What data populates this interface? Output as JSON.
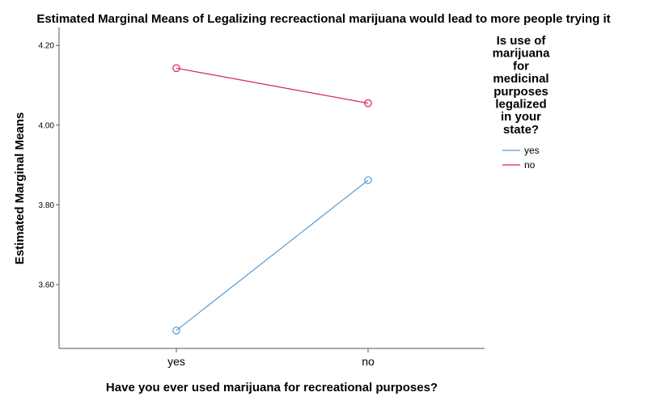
{
  "chart_data": {
    "type": "line",
    "title": "Estimated Marginal Means of Legalizing recreactional marijuana would lead to more people trying it",
    "xlabel": "Have you ever used marijuana for recreational purposes?",
    "ylabel": "Estimated Marginal Means",
    "categories": [
      "yes",
      "no"
    ],
    "yticks": [
      "3.60",
      "3.80",
      "4.00",
      "4.20"
    ],
    "ylim": [
      3.44,
      4.245
    ],
    "legend_title_lines": [
      "Is use of",
      "marijuana",
      "for",
      "medicinal",
      "purposes",
      "legalized",
      "in your",
      "state?"
    ],
    "legend_position": "right",
    "grid": false,
    "series": [
      {
        "name": "yes",
        "color": "#5b9bd5",
        "values": [
          3.485,
          3.862
        ]
      },
      {
        "name": "no",
        "color": "#d6254d",
        "values": [
          4.143,
          4.055
        ]
      }
    ]
  }
}
